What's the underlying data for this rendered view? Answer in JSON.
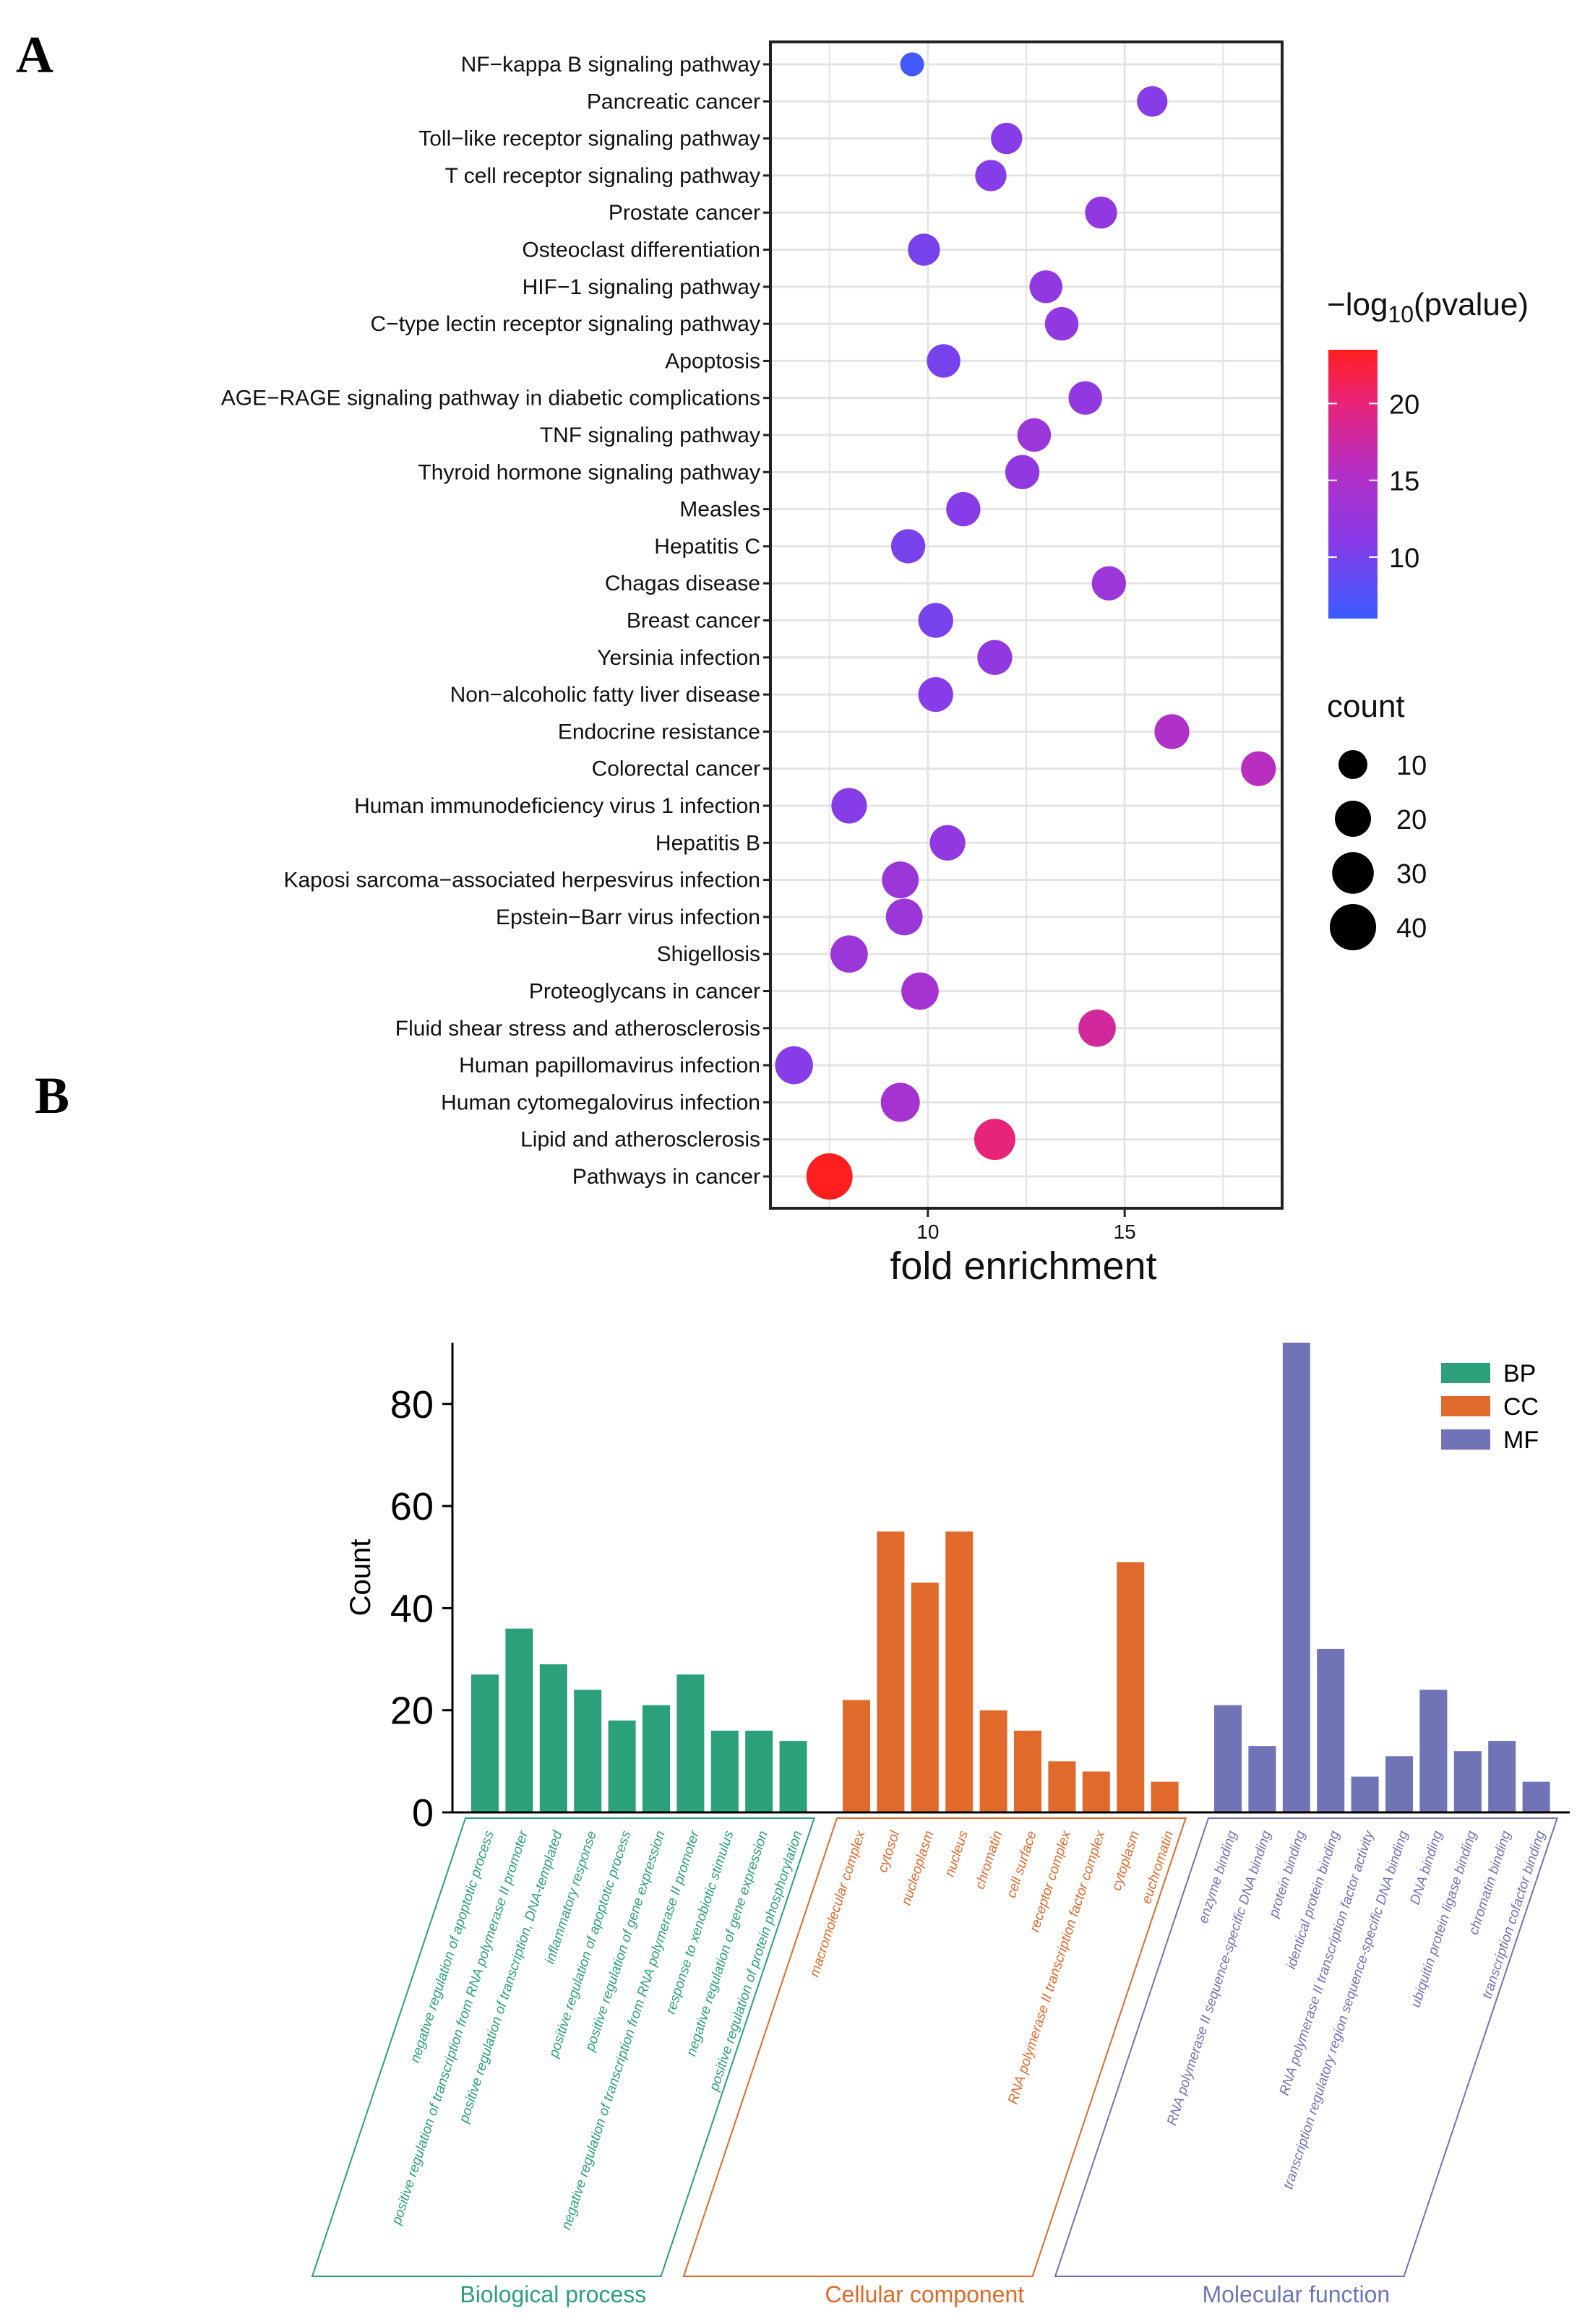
{
  "panel_a": {
    "letter": "A",
    "xlabel": "fold enrichment",
    "color_legend": {
      "title_prefix": "−log",
      "title_sub": "10",
      "title_suffix": "(pvalue)",
      "ticks": [
        "20",
        "15",
        "10"
      ]
    },
    "size_legend": {
      "title": "count",
      "items": [
        "10",
        "20",
        "30",
        "40"
      ]
    }
  },
  "panel_b": {
    "letter": "B",
    "ylabel": "Count",
    "legend": [
      "BP",
      "CC",
      "MF"
    ]
  },
  "colors": {
    "BP": "#2ca07a",
    "CC": "#e06a2b",
    "MF": "#7073b6",
    "low": "#3b5bff",
    "mid": "#a232d6",
    "high": "#ff1f1f"
  },
  "chart_data": [
    {
      "type": "scatter",
      "title": "",
      "xlabel": "fold enrichment",
      "ylabel": "",
      "xlim": [
        6,
        19
      ],
      "xticks": [
        10,
        15
      ],
      "grid": true,
      "color_var": "−log10(pvalue)",
      "color_range": [
        6,
        23.5
      ],
      "size_var": "count",
      "categories": [
        "NF−kappa B signaling pathway",
        "Pancreatic cancer",
        "Toll−like receptor signaling pathway",
        "T cell receptor signaling pathway",
        "Prostate cancer",
        "Osteoclast differentiation",
        "HIF−1 signaling pathway",
        "C−type lectin receptor signaling pathway",
        "Apoptosis",
        "AGE−RAGE signaling pathway in diabetic complications",
        "TNF signaling pathway",
        "Thyroid hormone signaling pathway",
        "Measles",
        "Hepatitis C",
        "Chagas disease",
        "Breast cancer",
        "Yersinia infection",
        "Non−alcoholic fatty liver disease",
        "Endocrine resistance",
        "Colorectal cancer",
        "Human immunodeficiency virus 1 infection",
        "Hepatitis B",
        "Kaposi sarcoma−associated herpesvirus infection",
        "Epstein−Barr virus infection",
        "Shigellosis",
        "Proteoglycans in cancer",
        "Fluid shear stress and atherosclerosis",
        "Human papillomavirus infection",
        "Human cytomegalovirus infection",
        "Lipid and atherosclerosis",
        "Pathways in cancer"
      ],
      "fold_enrichment": [
        9.6,
        15.7,
        12.0,
        11.6,
        14.4,
        9.9,
        13.0,
        13.4,
        10.4,
        14.0,
        12.7,
        12.4,
        10.9,
        9.5,
        14.6,
        10.2,
        11.7,
        10.2,
        16.2,
        18.4,
        8.0,
        10.5,
        9.3,
        9.4,
        8.0,
        9.8,
        14.3,
        6.6,
        9.3,
        11.7,
        7.5
      ],
      "neg_log10_pvalue": [
        6.5,
        11,
        11,
        11,
        12,
        10,
        12,
        12,
        10,
        12,
        13,
        12,
        11,
        10,
        13,
        10,
        12,
        11,
        15,
        16,
        11,
        12,
        13,
        13,
        13,
        14,
        18,
        11,
        14,
        20,
        23.5
      ],
      "count": [
        5,
        12,
        13,
        13,
        14,
        14,
        15,
        16,
        16,
        16,
        16,
        17,
        17,
        17,
        17,
        18,
        18,
        18,
        18,
        18,
        19,
        19,
        21,
        21,
        22,
        22,
        22,
        23,
        25,
        29,
        40
      ]
    },
    {
      "type": "bar",
      "title": "",
      "xlabel": "",
      "ylabel": "Count",
      "ylim": [
        0,
        92
      ],
      "yticks": [
        0,
        20,
        40,
        60,
        80
      ],
      "legend_position": "top-right",
      "series": [
        {
          "name": "BP",
          "group_label": "Biological process",
          "categories": [
            "negative regulation of apoptotic process",
            "positive regulation of transcription from RNA polymerase II promoter",
            "positive regulation of transcription, DNA-templated",
            "inflammatory response",
            "positive regulation of apoptotic process",
            "positive regulation of gene expression",
            "negative regulation of transcription from RNA polymerase II promoter",
            "response to xenobiotic stimulus",
            "negative regulation of gene expression",
            "positive regulation of protein phosphorylation"
          ],
          "values": [
            27,
            36,
            29,
            24,
            18,
            21,
            27,
            16,
            16,
            14
          ]
        },
        {
          "name": "CC",
          "group_label": "Cellular component",
          "categories": [
            "macromolecular complex",
            "cytosol",
            "nucleoplasm",
            "nucleus",
            "chromatin",
            "cell surface",
            "receptor complex",
            "RNA polymerase II transcription factor complex",
            "cytoplasm",
            "euchromatin"
          ],
          "values": [
            22,
            55,
            45,
            55,
            20,
            16,
            10,
            8,
            49,
            6
          ]
        },
        {
          "name": "MF",
          "group_label": "Molecular function",
          "categories": [
            "enzyme binding",
            "RNA polymerase II sequence-specific DNA binding",
            "protein binding",
            "identical protein binding",
            "RNA polymerase II transcription factor activity",
            "transcription regulatory region sequence-specific DNA binding",
            "DNA binding",
            "ubiquitin protein ligase binding",
            "chromatin binding",
            "transcription cofactor binding"
          ],
          "values": [
            21,
            13,
            92,
            32,
            7,
            11,
            24,
            12,
            14,
            6
          ]
        }
      ]
    }
  ]
}
